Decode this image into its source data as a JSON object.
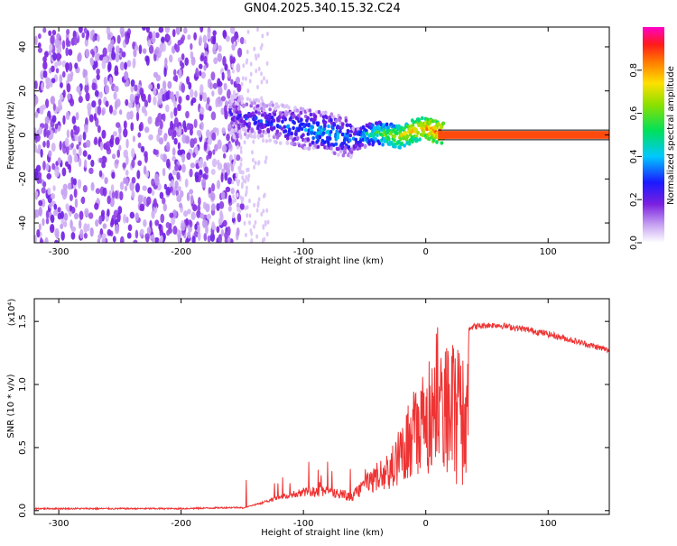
{
  "page_title": "GN04.2025.340.15.32.C24",
  "chart_data": [
    {
      "type": "heatmap",
      "title": "GN04.2025.340.15.32.C24",
      "xlabel": "Height of straight line (km)",
      "ylabel": "Frequency (Hz)",
      "xlim": [
        -320,
        150
      ],
      "ylim": [
        -49,
        49
      ],
      "xticks": [
        -300,
        -200,
        -100,
        0,
        100
      ],
      "xtick_labels": [
        "-300",
        "-200",
        "-100",
        "0",
        "100"
      ],
      "yticks": [
        -40,
        -20,
        0,
        20,
        40
      ],
      "ytick_labels": [
        "-40",
        "-20",
        "0",
        "20",
        "40"
      ],
      "colorbar": {
        "label": "Normalized spectral amplitude",
        "range": [
          0,
          1
        ],
        "ticks": [
          0.0,
          0.2,
          0.4,
          0.6,
          0.8
        ],
        "tick_labels": [
          "0.0",
          "0.2",
          "0.4",
          "0.6",
          "0.8"
        ]
      },
      "trace": {
        "x": [
          -160,
          -140,
          -120,
          -100,
          -80,
          -60,
          -40,
          -20,
          -10,
          0,
          10,
          30,
          60,
          100,
          150
        ],
        "freq": [
          9,
          7,
          5,
          3,
          1,
          -2,
          1,
          -1,
          2,
          3,
          1,
          0,
          0,
          0,
          0
        ],
        "amplitude": [
          0.25,
          0.3,
          0.3,
          0.35,
          0.4,
          0.35,
          0.55,
          0.7,
          0.75,
          0.8,
          0.85,
          0.9,
          0.92,
          0.93,
          0.95
        ]
      },
      "noise_region": {
        "x_from": -320,
        "x_to": -158,
        "amplitude": 0.1
      }
    },
    {
      "type": "line",
      "xlabel": "Height of straight line (km)",
      "ylabel": "SNR (10 * v/v)",
      "y_multiplier": "(x10⁴)",
      "xlim": [
        -320,
        150
      ],
      "ylim": [
        -0.03,
        1.68
      ],
      "xticks": [
        -300,
        -200,
        -100,
        0,
        100
      ],
      "xtick_labels": [
        "-300",
        "-200",
        "-100",
        "0",
        "100"
      ],
      "yticks": [
        0.0,
        0.5,
        1.0,
        1.5
      ],
      "ytick_labels": [
        "0.0",
        "0.5",
        "1.0",
        "1.5"
      ],
      "series": [
        {
          "name": "SNR",
          "color": "#ee3333",
          "envelope_x": [
            -320,
            -200,
            -150,
            -140,
            -120,
            -100,
            -80,
            -60,
            -50,
            -40,
            -30,
            -20,
            -10,
            0,
            5,
            10,
            20,
            30,
            40,
            50,
            60,
            80,
            100,
            120,
            150
          ],
          "envelope_y": [
            0.01,
            0.01,
            0.02,
            0.05,
            0.12,
            0.18,
            0.2,
            0.15,
            0.28,
            0.38,
            0.45,
            0.7,
            0.95,
            1.15,
            1.22,
            1.3,
            1.38,
            1.44,
            1.46,
            1.47,
            1.47,
            1.44,
            1.4,
            1.35,
            1.27
          ]
        }
      ]
    }
  ]
}
